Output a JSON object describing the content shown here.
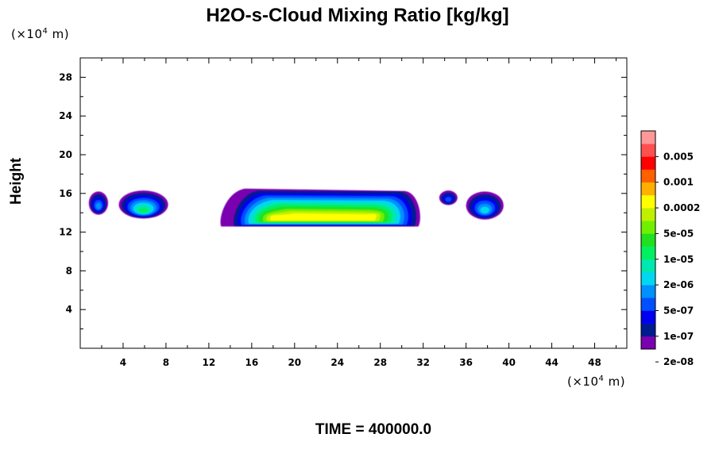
{
  "chart_data": {
    "type": "contour",
    "title": "H2O-s-Cloud Mixing Ratio [kg/kg]",
    "ylabel": "Height",
    "x_unit": {
      "prefix": "(×10",
      "exp": "4",
      "suffix": " m)"
    },
    "y_unit": {
      "prefix": "(×10",
      "exp": "4",
      "suffix": " m)"
    },
    "xlim": [
      0,
      51
    ],
    "ylim": [
      0,
      30
    ],
    "x_ticks": [
      4,
      8,
      12,
      16,
      20,
      24,
      28,
      32,
      36,
      40,
      44,
      48
    ],
    "y_ticks": [
      4,
      8,
      12,
      16,
      20,
      24,
      28
    ],
    "x_tick_labels": [
      "4",
      "8",
      "12",
      "16",
      "20",
      "24",
      "28",
      "32",
      "36",
      "40",
      "44",
      "48"
    ],
    "y_tick_labels": [
      "4",
      "8",
      "12",
      "16",
      "20",
      "24",
      "28"
    ],
    "colorbar": {
      "labels": [
        "0.005",
        "0.001",
        "0.0002",
        "5e-05",
        "1e-05",
        "2e-06",
        "5e-07",
        "1e-07",
        "2e-08"
      ],
      "colors": [
        "#7a00b0",
        "#001a90",
        "#0000f0",
        "#0050ff",
        "#0090ff",
        "#00d8f0",
        "#00e8b0",
        "#00f060",
        "#20e020",
        "#70f000",
        "#c0f000",
        "#ffff00",
        "#ffb000",
        "#ff6000",
        "#ff0000",
        "#ff5050",
        "#ff9898"
      ]
    },
    "cloud_regions": [
      {
        "name": "small-left",
        "x": [
          0.8,
          2.6
        ],
        "y": [
          13.8,
          16.2
        ]
      },
      {
        "name": "left",
        "x": [
          3.6,
          8.2
        ],
        "y": [
          13.4,
          16.3
        ]
      },
      {
        "name": "main",
        "x": [
          13.0,
          32.0
        ],
        "y": [
          12.5,
          16.5
        ]
      },
      {
        "name": "right-a",
        "x": [
          33.5,
          35.2
        ],
        "y": [
          14.8,
          16.3
        ]
      },
      {
        "name": "right-b",
        "x": [
          36.0,
          39.5
        ],
        "y": [
          13.3,
          16.2
        ]
      }
    ],
    "time_label": "TIME = 400000.0"
  }
}
